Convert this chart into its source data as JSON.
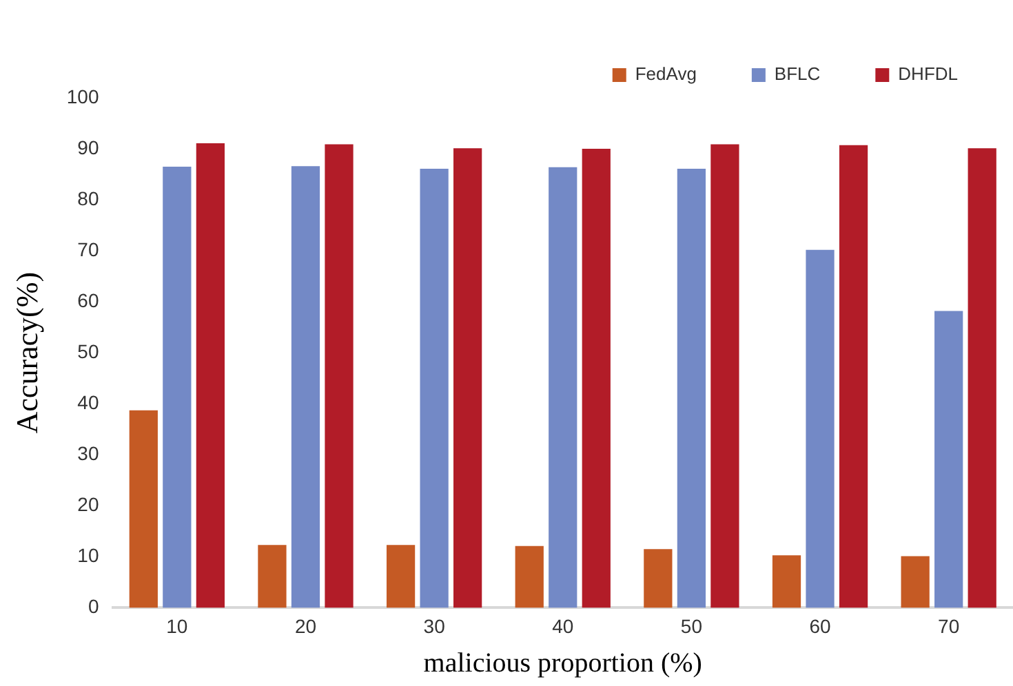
{
  "chart_data": {
    "type": "bar",
    "xlabel": "malicious proportion (%)",
    "ylabel": "Accuracy(%)",
    "categories": [
      "10",
      "20",
      "30",
      "40",
      "50",
      "60",
      "70"
    ],
    "series": [
      {
        "name": "FedAvg",
        "color": "#c55a24",
        "values": [
          38.7,
          12.3,
          12.3,
          12.1,
          11.5,
          10.3,
          10.1
        ]
      },
      {
        "name": "BFLC",
        "color": "#7389c6",
        "values": [
          86.5,
          86.6,
          86.1,
          86.4,
          86.1,
          70.2,
          58.2
        ]
      },
      {
        "name": "DHFDL",
        "color": "#b21c28",
        "values": [
          91.1,
          90.9,
          90.1,
          90.0,
          90.9,
          90.7,
          90.1
        ]
      }
    ],
    "ylim": [
      0,
      100
    ],
    "yticks": [
      0,
      10,
      20,
      30,
      40,
      50,
      60,
      70,
      80,
      90,
      100
    ],
    "grid": false,
    "legend": "top right"
  }
}
